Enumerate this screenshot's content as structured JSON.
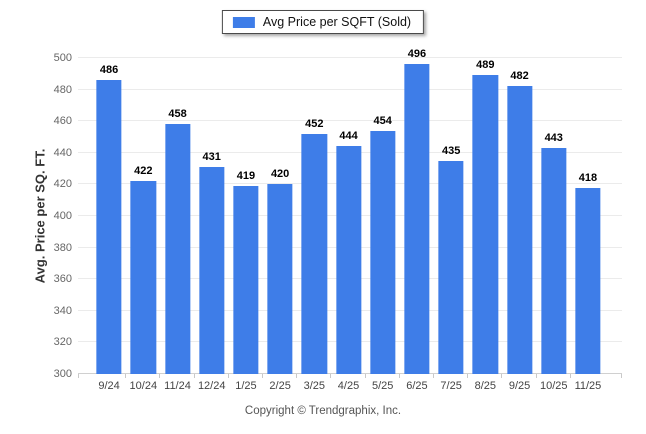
{
  "legend": {
    "label": "Avg Price per SQFT (Sold)",
    "swatch_color": "#3e7de8"
  },
  "footer": {
    "text": "Copyright © Trendgraphix, Inc."
  },
  "colors": {
    "bar": "#3e7de8",
    "gridline": "#ebebeb",
    "axis_line": "#d0d0d0",
    "ytick_text": "#666666",
    "xtick_text": "#444444",
    "value_text": "#000000"
  },
  "chart_data": {
    "type": "bar",
    "title": "",
    "legend_entries": [
      "Avg Price per SQFT (Sold)"
    ],
    "legend_position": "top-center",
    "categories": [
      "9/24",
      "10/24",
      "11/24",
      "12/24",
      "1/25",
      "2/25",
      "3/25",
      "4/25",
      "5/25",
      "6/25",
      "7/25",
      "8/25",
      "9/25",
      "10/25",
      "11/25"
    ],
    "values": [
      486,
      422,
      458,
      431,
      419,
      420,
      452,
      444,
      454,
      496,
      435,
      489,
      482,
      443,
      418
    ],
    "xlabel": "",
    "ylabel": "Avg. Price per SQ. FT.",
    "ylim": [
      300,
      500
    ],
    "ytick_step": 20,
    "grid": "horizontal",
    "value_labels": true,
    "bar_color": "#3e7de8"
  }
}
